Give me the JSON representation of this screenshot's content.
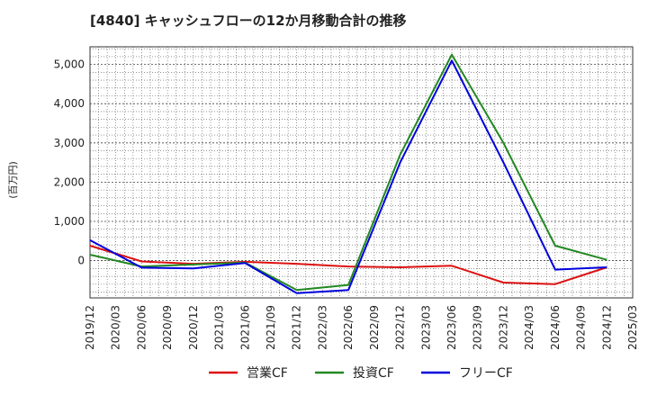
{
  "chart_data": {
    "type": "line",
    "title": "[4840]  キャッシュフローの12か月移動合計の推移",
    "ylabel": "(百万円)",
    "xlabel": "",
    "categories": [
      "2019/12",
      "2020/03",
      "2020/06",
      "2020/09",
      "2020/12",
      "2021/03",
      "2021/06",
      "2021/09",
      "2021/12",
      "2022/03",
      "2022/06",
      "2022/09",
      "2022/12",
      "2023/03",
      "2023/06",
      "2023/09",
      "2023/12",
      "2024/03",
      "2024/06",
      "2024/09",
      "2024/12",
      "2025/03"
    ],
    "y_ticks": [
      0,
      1000,
      2000,
      3000,
      4000,
      5000
    ],
    "y_tick_labels": [
      "0",
      "1,000",
      "2,000",
      "3,000",
      "4,000",
      "5,000"
    ],
    "ylim": [
      -950,
      5450
    ],
    "grid": true,
    "legend_position": "bottom",
    "series": [
      {
        "name": "営業CF",
        "color": "#dd1111",
        "values": [
          380,
          null,
          -20,
          null,
          -80,
          null,
          -30,
          null,
          -80,
          null,
          -150,
          null,
          -170,
          null,
          -130,
          null,
          -560,
          null,
          -600,
          null,
          -170,
          null
        ]
      },
      {
        "name": "投資CF",
        "color": "#228822",
        "values": [
          150,
          null,
          -150,
          null,
          -100,
          null,
          -50,
          null,
          -750,
          null,
          -620,
          null,
          2700,
          null,
          5250,
          null,
          3000,
          null,
          380,
          null,
          20,
          null
        ]
      },
      {
        "name": "フリーCF",
        "color": "#0000dd",
        "values": [
          520,
          null,
          -180,
          null,
          -200,
          null,
          -60,
          null,
          -830,
          null,
          -750,
          null,
          2500,
          null,
          5100,
          null,
          2500,
          null,
          -230,
          null,
          -170,
          null
        ]
      }
    ]
  }
}
